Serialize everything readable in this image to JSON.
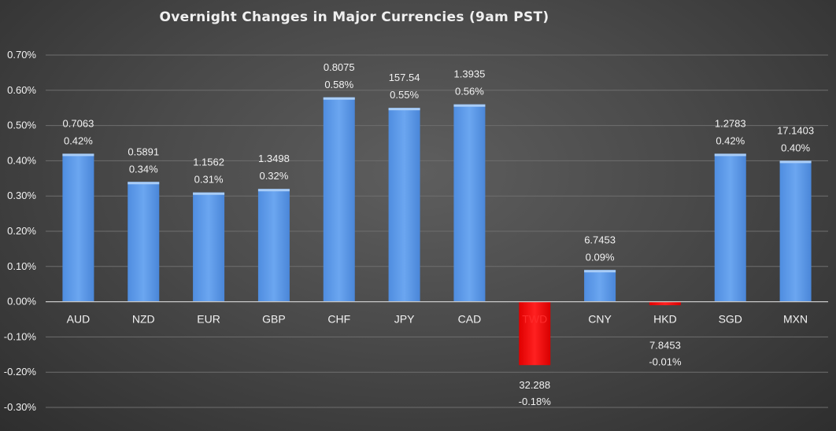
{
  "chart_data": {
    "type": "bar",
    "title": "Overnight Changes in Major Currencies (9am PST)",
    "xlabel": "",
    "ylabel": "",
    "ylim": [
      -0.003,
      0.007
    ],
    "yticks": [
      "0.70%",
      "0.60%",
      "0.50%",
      "0.40%",
      "0.30%",
      "0.20%",
      "0.10%",
      "0.00%",
      "-0.10%",
      "-0.20%",
      "-0.30%"
    ],
    "grid": true,
    "legend": "none",
    "colors": {
      "positive": "#5b9ae6",
      "negative": "#ff0000",
      "highlight_label": "#ff2a2a"
    },
    "categories": [
      "AUD",
      "NZD",
      "EUR",
      "GBP",
      "CHF",
      "JPY",
      "CAD",
      "TWD",
      "CNY",
      "HKD",
      "SGD",
      "MXN"
    ],
    "values": [
      0.0042,
      0.0034,
      0.0031,
      0.0032,
      0.0058,
      0.0055,
      0.0056,
      -0.0018,
      0.0009,
      -0.0001,
      0.0042,
      0.004
    ],
    "rates": [
      "0.7063",
      "0.5891",
      "1.1562",
      "1.3498",
      "0.8075",
      "157.54",
      "1.3935",
      "32.288",
      "6.7453",
      "7.8453",
      "1.2783",
      "17.1403"
    ],
    "pct_labels": [
      "0.42%",
      "0.34%",
      "0.31%",
      "0.32%",
      "0.58%",
      "0.55%",
      "0.56%",
      "-0.18%",
      "0.09%",
      "-0.01%",
      "0.42%",
      "0.40%"
    ],
    "highlighted_category": "TWD"
  }
}
